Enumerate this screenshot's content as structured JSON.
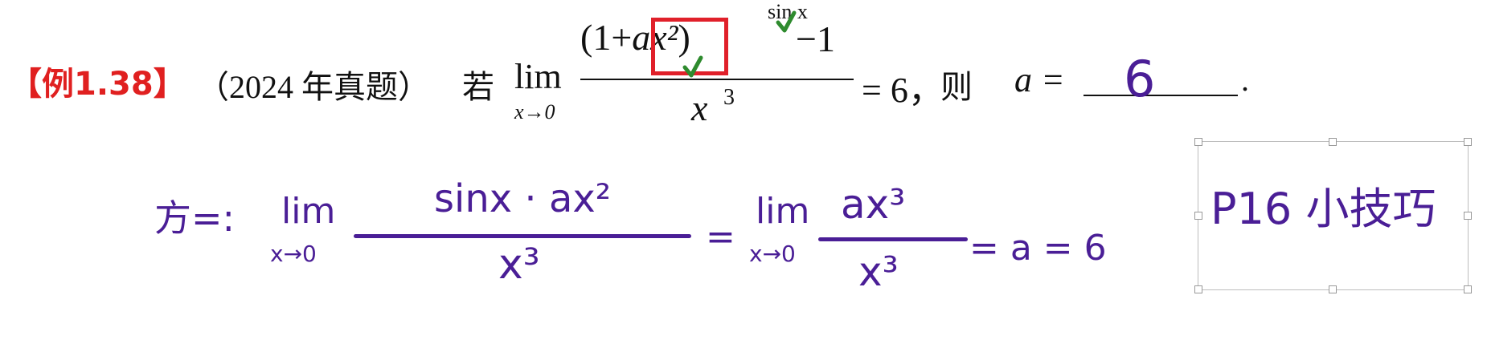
{
  "problem": {
    "tag": "【例1.38】",
    "source": "（2024 年真题）",
    "ruo": "若",
    "lim_word": "lim",
    "lim_sub": "x→0",
    "num_left": "(1+",
    "num_box": "ax²",
    "num_right": ")",
    "sup_sin": "sin x",
    "minus_one": "−1",
    "den_x": "x",
    "den_sup": "3",
    "equals_value": "= 6，",
    "then": "则",
    "a_eq": "a =",
    "period": ".",
    "answer": "6"
  },
  "handwriting": {
    "label": "方=:",
    "lim_word": "lim",
    "lim_sub": "x→0",
    "num1": "sinx · ax²",
    "den1": "x³",
    "eq": "=",
    "lim2_word": "lim",
    "lim2_sub": "x→0",
    "num2": "ax³",
    "den2": "x³",
    "tail": "= a = 6"
  },
  "note": {
    "text": "P16 小技巧"
  },
  "colors": {
    "tag_red": "#e02020",
    "box_red": "#e0202a",
    "ink_purple": "#4a1e96",
    "check_green": "#2e8b2e"
  }
}
